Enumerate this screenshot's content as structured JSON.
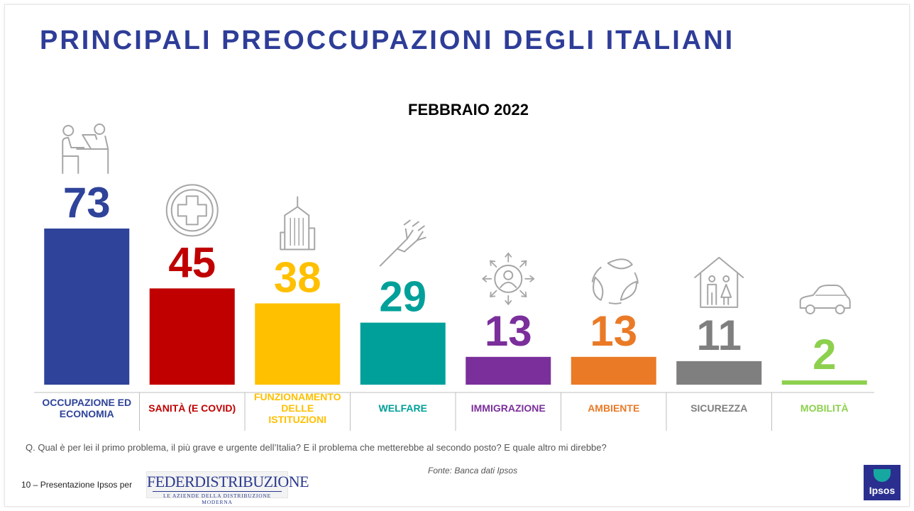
{
  "slide": {
    "title": "PRINCIPALI PREOCCUPAZIONI DEGLI ITALIANI",
    "question": "Q. Qual è per lei il primo problema, il più grave e urgente dell’Italia? E il problema che metterebbe al secondo posto? E quale altro mi direbbe?",
    "source": "Fonte: Banca dati Ipsos",
    "footer": "10 – Presentazione Ipsos per",
    "client_logo_main": "FEDERDISTRIBUZIONE",
    "client_logo_sub": "LE AZIENDE DELLA DISTRIBUZIONE MODERNA",
    "ipsos_logo": "Ipsos"
  },
  "chart_data": {
    "type": "bar",
    "title": "FEBBRAIO 2022",
    "categories": [
      "OCCUPAZIONE ED ECONOMIA",
      "SANITÀ (E COVID)",
      "FUNZIONAMENTO DELLE ISTITUZIONI",
      "WELFARE",
      "IMMIGRAZIONE",
      "AMBIENTE",
      "SICUREZZA",
      "MOBILITÀ"
    ],
    "category_lines": [
      [
        "OCCUPAZIONE ED",
        "ECONOMIA"
      ],
      [
        "SANITÀ (E COVID)"
      ],
      [
        "FUNZIONAMENTO",
        "DELLE",
        "ISTITUZIONI"
      ],
      [
        "WELFARE"
      ],
      [
        "IMMIGRAZIONE"
      ],
      [
        "AMBIENTE"
      ],
      [
        "SICUREZZA"
      ],
      [
        "MOBILITÀ"
      ]
    ],
    "values": [
      73,
      45,
      38,
      29,
      13,
      13,
      11,
      2
    ],
    "colors": [
      "#2e4399",
      "#c00000",
      "#ffc000",
      "#00a09a",
      "#7b2f9b",
      "#ea7a26",
      "#7f7f7f",
      "#8dd04e"
    ],
    "icons": [
      "people-at-desk-icon",
      "medical-cross-icon",
      "government-building-icon",
      "helping-hands-icon",
      "person-arrows-icon",
      "recycle-leaves-icon",
      "house-family-icon",
      "car-icon"
    ],
    "ylim": [
      0,
      80
    ],
    "grid": false,
    "legend": "none"
  }
}
